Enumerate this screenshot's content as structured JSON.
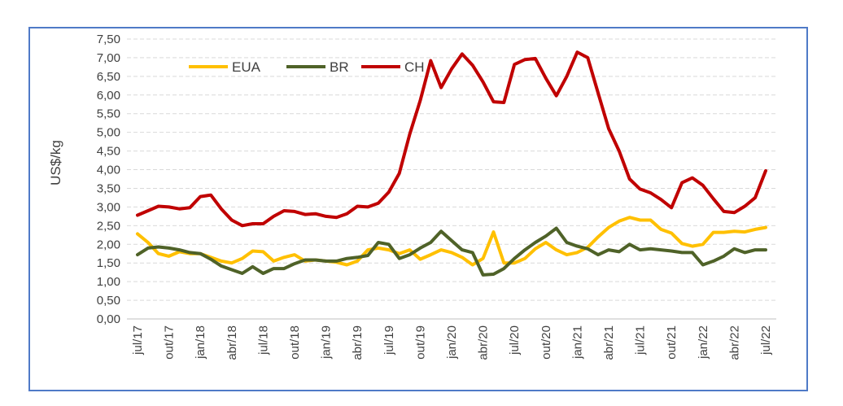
{
  "chart_data": {
    "type": "line",
    "title": "",
    "ylabel": "US$/kg",
    "xlabel": "",
    "ylim": [
      0,
      7.5
    ],
    "y_ticks": [
      "0,00",
      "0,50",
      "1,00",
      "1,50",
      "2,00",
      "2,50",
      "3,00",
      "3,50",
      "4,00",
      "4,50",
      "5,00",
      "5,50",
      "6,00",
      "6,50",
      "7,00",
      "7,50"
    ],
    "grid": true,
    "legend_position": "top-left",
    "x_labels": [
      "jul/17",
      "out/17",
      "jan/18",
      "abr/18",
      "jul/18",
      "out/18",
      "jan/19",
      "abr/19",
      "jul/19",
      "out/19",
      "jan/20",
      "abr/20",
      "jul/20",
      "out/20",
      "jan/21",
      "abr/21",
      "jul/21",
      "out/21",
      "jan/22",
      "abr/22",
      "jul/22"
    ],
    "series": [
      {
        "name": "EUA",
        "color": "#ffc000",
        "values": [
          2.28,
          2.05,
          1.75,
          1.68,
          1.8,
          1.75,
          1.75,
          1.65,
          1.55,
          1.5,
          1.62,
          1.82,
          1.8,
          1.55,
          1.65,
          1.72,
          1.55,
          1.58,
          1.55,
          1.52,
          1.45,
          1.55,
          1.85,
          1.9,
          1.85,
          1.75,
          1.85,
          1.6,
          1.72,
          1.85,
          1.78,
          1.65,
          1.45,
          1.62,
          2.33,
          1.5,
          1.5,
          1.62,
          1.88,
          2.05,
          1.85,
          1.72,
          1.78,
          1.92,
          2.2,
          2.45,
          2.62,
          2.72,
          2.65,
          2.65,
          2.4,
          2.3,
          2.02,
          1.95,
          2.0,
          2.32,
          2.32,
          2.35,
          2.33,
          2.4,
          2.45
        ]
      },
      {
        "name": "BR",
        "color": "#4f6228",
        "values": [
          1.72,
          1.9,
          1.93,
          1.9,
          1.85,
          1.78,
          1.75,
          1.6,
          1.42,
          1.32,
          1.22,
          1.4,
          1.22,
          1.35,
          1.35,
          1.48,
          1.58,
          1.58,
          1.55,
          1.55,
          1.62,
          1.65,
          1.7,
          2.05,
          2.0,
          1.62,
          1.72,
          1.9,
          2.05,
          2.35,
          2.1,
          1.85,
          1.78,
          1.18,
          1.2,
          1.35,
          1.62,
          1.85,
          2.05,
          2.22,
          2.43,
          2.05,
          1.95,
          1.88,
          1.72,
          1.85,
          1.8,
          2.0,
          1.85,
          1.88,
          1.85,
          1.82,
          1.78,
          1.78,
          1.45,
          1.55,
          1.68,
          1.88,
          1.78,
          1.85,
          1.85
        ]
      },
      {
        "name": "CH",
        "color": "#c00000",
        "values": [
          2.78,
          2.9,
          3.02,
          3.0,
          2.95,
          2.98,
          3.28,
          3.32,
          2.95,
          2.65,
          2.5,
          2.55,
          2.55,
          2.75,
          2.9,
          2.88,
          2.8,
          2.82,
          2.75,
          2.72,
          2.82,
          3.02,
          3.0,
          3.1,
          3.4,
          3.9,
          4.95,
          5.85,
          6.92,
          6.2,
          6.7,
          7.1,
          6.8,
          6.35,
          5.82,
          5.8,
          6.82,
          6.95,
          6.98,
          6.45,
          5.98,
          6.5,
          7.15,
          7.0,
          6.05,
          5.1,
          4.5,
          3.75,
          3.48,
          3.38,
          3.2,
          2.98,
          3.65,
          3.78,
          3.58,
          3.22,
          2.88,
          2.85,
          3.02,
          3.25,
          3.97
        ]
      }
    ]
  }
}
